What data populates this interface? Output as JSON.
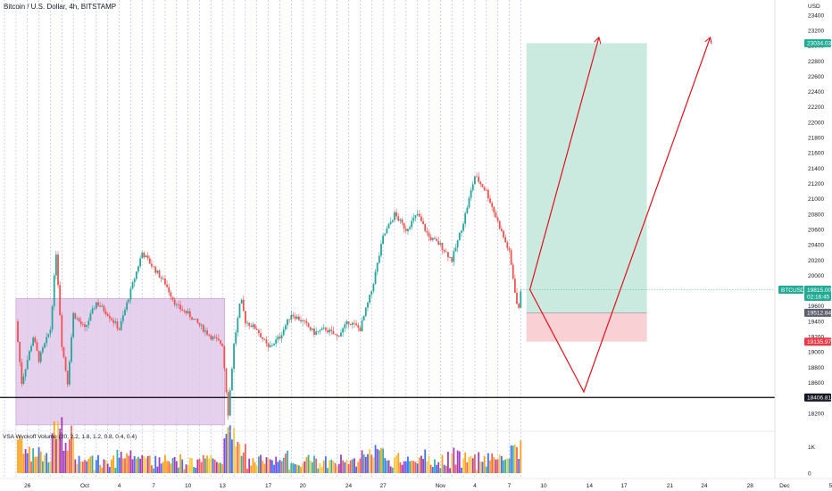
{
  "header": {
    "title": "Bitcoin / U.S. Dollar, 4h, BITSTAMP",
    "currency": "USD",
    "indicator_label": "VSA Wyckoff Volume (20, 2.2, 1.8, 1.2, 0.8, 0.4, 0.4)"
  },
  "badges": {
    "target": "23034.03",
    "symbol": "BTCUSD",
    "last_price": "19815.00",
    "countdown": "02:16:45",
    "entry": "19512.84",
    "stop": "19135.97",
    "support": "18406.81"
  },
  "colors": {
    "candle_up": "#26a69a",
    "candle_down": "#ef5350",
    "profit_zone": "#b8e3d6",
    "loss_zone": "#f8c9cd",
    "range_box": "#e1c8ec",
    "arrow": "#e0101a",
    "support_line": "#000000"
  },
  "chart_data": {
    "type": "candlestick",
    "title": "Bitcoin / U.S. Dollar, 4h, BITSTAMP",
    "ylabel": "USD",
    "ylim": [
      18000,
      23600
    ],
    "y_ticks": [
      18200,
      18400,
      18600,
      18800,
      19000,
      19200,
      19400,
      19600,
      19800,
      20000,
      20200,
      20400,
      20600,
      20800,
      21000,
      21200,
      21400,
      21600,
      21800,
      22000,
      22200,
      22400,
      22600,
      22800,
      23000,
      23200,
      23400
    ],
    "x_ticks": [
      "26",
      "Oct",
      "4",
      "7",
      "10",
      "13",
      "17",
      "20",
      "24",
      "27",
      "Nov",
      "4",
      "7",
      "10",
      "14",
      "17",
      "21",
      "24",
      "28",
      "Dec",
      "5"
    ],
    "x_tick_days": [
      -5,
      0,
      3,
      6,
      9,
      12,
      16,
      19,
      23,
      26,
      31,
      34,
      37,
      40,
      44,
      47,
      51,
      54,
      58,
      61,
      65
    ],
    "price_path": [
      [
        -6,
        19400
      ],
      [
        -5.5,
        18600
      ],
      [
        -4.5,
        19200
      ],
      [
        -4,
        18900
      ],
      [
        -3,
        19300
      ],
      [
        -2.5,
        20300
      ],
      [
        -2,
        19100
      ],
      [
        -1.5,
        18600
      ],
      [
        -1,
        19500
      ],
      [
        0,
        19300
      ],
      [
        1,
        19650
      ],
      [
        2,
        19500
      ],
      [
        3,
        19300
      ],
      [
        4,
        19800
      ],
      [
        5,
        20300
      ],
      [
        6,
        20100
      ],
      [
        7,
        19900
      ],
      [
        8,
        19600
      ],
      [
        9,
        19500
      ],
      [
        10,
        19350
      ],
      [
        11,
        19200
      ],
      [
        12,
        19100
      ],
      [
        12.5,
        18200
      ],
      [
        13,
        19100
      ],
      [
        13.6,
        19700
      ],
      [
        14,
        19400
      ],
      [
        15,
        19300
      ],
      [
        16,
        19050
      ],
      [
        17,
        19200
      ],
      [
        18,
        19500
      ],
      [
        19,
        19400
      ],
      [
        20,
        19250
      ],
      [
        21,
        19300
      ],
      [
        22,
        19200
      ],
      [
        23,
        19400
      ],
      [
        24,
        19300
      ],
      [
        25,
        19800
      ],
      [
        26,
        20500
      ],
      [
        27,
        20800
      ],
      [
        28,
        20600
      ],
      [
        29,
        20800
      ],
      [
        30,
        20500
      ],
      [
        31,
        20400
      ],
      [
        32,
        20200
      ],
      [
        33,
        20700
      ],
      [
        34,
        21300
      ],
      [
        35,
        21100
      ],
      [
        36,
        20700
      ],
      [
        37,
        20300
      ],
      [
        37.5,
        19800
      ],
      [
        37.8,
        19500
      ],
      [
        38,
        19815
      ]
    ],
    "volume_ylim": [
      0,
      1500
    ],
    "volume_ticks": [
      0,
      1000
    ],
    "annotations": {
      "accumulation_range": {
        "day_from": -6,
        "day_to": 12.2,
        "price_low": 18050,
        "price_high": 19700
      },
      "long_position": {
        "day_from": 38.5,
        "day_to": 49,
        "entry": 19512.84,
        "target": 23034.03,
        "stop": 19135.97
      },
      "support_level": 18406.81,
      "last_price": 19815.0,
      "projection_arrow_1": [
        [
          38.8,
          19815
        ],
        [
          44.8,
          23100
        ]
      ],
      "projection_arrow_2": [
        [
          38.8,
          19815
        ],
        [
          43.5,
          18480
        ],
        [
          54.5,
          23100
        ]
      ]
    }
  }
}
